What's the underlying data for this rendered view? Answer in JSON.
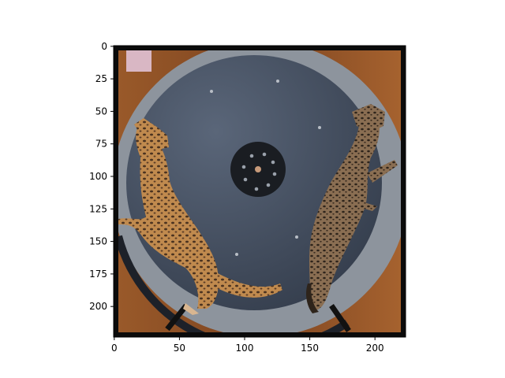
{
  "figure": {
    "image_description_icon": "photo-two-bengal-cats-on-exercise-wheel",
    "colors": {
      "frame": "#0b0b0b",
      "wheel": "#3f4a5c",
      "wheel_highlight": "#5a6679",
      "track": "#8d949d",
      "wood": "#8b4f24",
      "cat_fur": "#c08a4e",
      "cat_fur_dark": "#6e5038",
      "hub": "#1a1d22"
    }
  },
  "axes": {
    "x": {
      "ticks": [
        {
          "value": 0,
          "label": "0"
        },
        {
          "value": 50,
          "label": "50"
        },
        {
          "value": 100,
          "label": "100"
        },
        {
          "value": 150,
          "label": "150"
        },
        {
          "value": 200,
          "label": "200"
        }
      ],
      "range": [
        -0.5,
        223.5
      ]
    },
    "y": {
      "ticks": [
        {
          "value": 0,
          "label": "0"
        },
        {
          "value": 25,
          "label": "25"
        },
        {
          "value": 50,
          "label": "50"
        },
        {
          "value": 75,
          "label": "75"
        },
        {
          "value": 100,
          "label": "100"
        },
        {
          "value": 125,
          "label": "125"
        },
        {
          "value": 150,
          "label": "150"
        },
        {
          "value": 175,
          "label": "175"
        },
        {
          "value": 200,
          "label": "200"
        }
      ],
      "range": [
        223.5,
        -0.5
      ]
    }
  }
}
